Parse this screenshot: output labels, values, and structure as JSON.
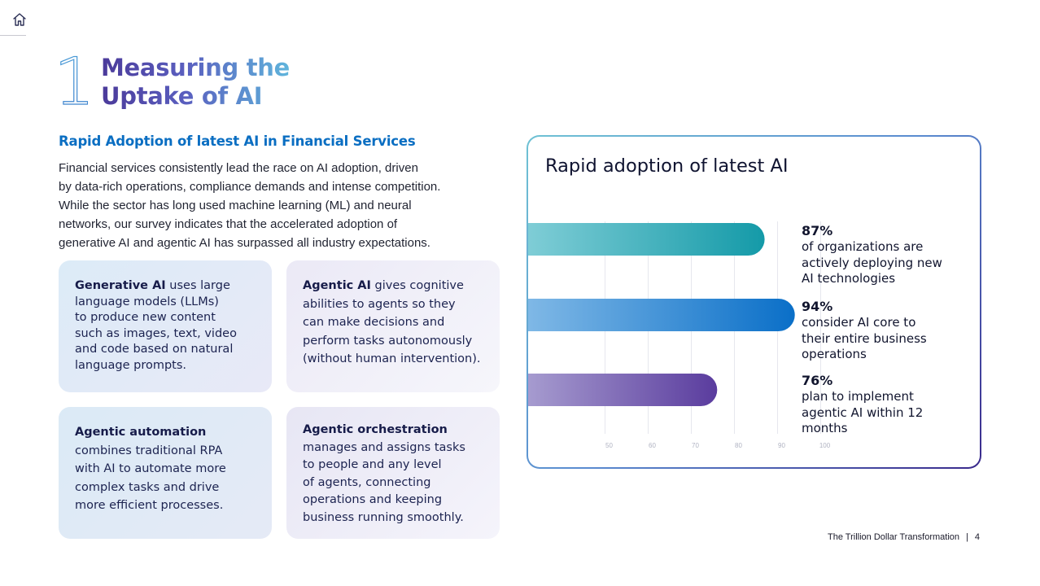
{
  "nav": {
    "home_icon": "home-icon"
  },
  "section": {
    "number": "1",
    "title_lines": [
      "Measuring the",
      "Uptake of AI"
    ]
  },
  "subheading": "Rapid Adoption of latest AI in Financial Services",
  "intro_lines": [
    "Financial services consistently lead the race on AI adoption, driven",
    "by data-rich operations, compliance demands and intense competition.",
    "While the sector has long used machine learning (ML) and neural",
    "networks, our survey indicates that the accelerated adoption of",
    "generative AI and agentic AI has surpassed all industry expectations."
  ],
  "cards": [
    {
      "term": "Generative AI",
      "lines": [
        " uses large",
        "language models (LLMs)",
        "to produce new content",
        "such as images, text, video",
        "and code based on natural",
        "language prompts."
      ]
    },
    {
      "term": "Agentic AI",
      "lines": [
        " gives cognitive",
        "abilities to agents so they",
        "can make decisions and",
        "perform tasks autonomously",
        "(without human intervention)."
      ]
    },
    {
      "term": "Agentic automation",
      "lines": [
        "",
        "combines traditional RPA",
        "with AI to automate more",
        "complex tasks and drive",
        "more efficient processes."
      ]
    },
    {
      "term": "Agentic orchestration",
      "lines": [
        "",
        "manages and assigns tasks",
        "to people and any level",
        "of agents, connecting",
        "operations and keeping",
        "business running smoothly."
      ]
    }
  ],
  "chart_title": "Rapid adoption of latest AI",
  "chart_data": {
    "type": "bar",
    "orientation": "horizontal",
    "title": "Rapid adoption of latest AI",
    "x_ticks": [
      50,
      60,
      70,
      80,
      90,
      100
    ],
    "xlim": [
      40,
      100
    ],
    "grid": true,
    "values": [
      87,
      94,
      76
    ],
    "colors": [
      [
        "#7fcdd6",
        "#149aa8"
      ],
      [
        "#7fb8e6",
        "#0a6fc8"
      ],
      [
        "#a69bcf",
        "#5a3c9e"
      ]
    ]
  },
  "stats": [
    {
      "pct": "87%",
      "lines": [
        "of organizations are",
        "actively deploying new",
        "AI technologies"
      ]
    },
    {
      "pct": "94%",
      "lines": [
        "consider AI core to",
        "their entire business",
        "operations"
      ]
    },
    {
      "pct": "76%",
      "lines": [
        "plan to implement",
        "agentic AI within 12",
        "months"
      ]
    }
  ],
  "footer": {
    "title": "The Trillion Dollar Transformation",
    "separator": "|",
    "page": "4"
  }
}
